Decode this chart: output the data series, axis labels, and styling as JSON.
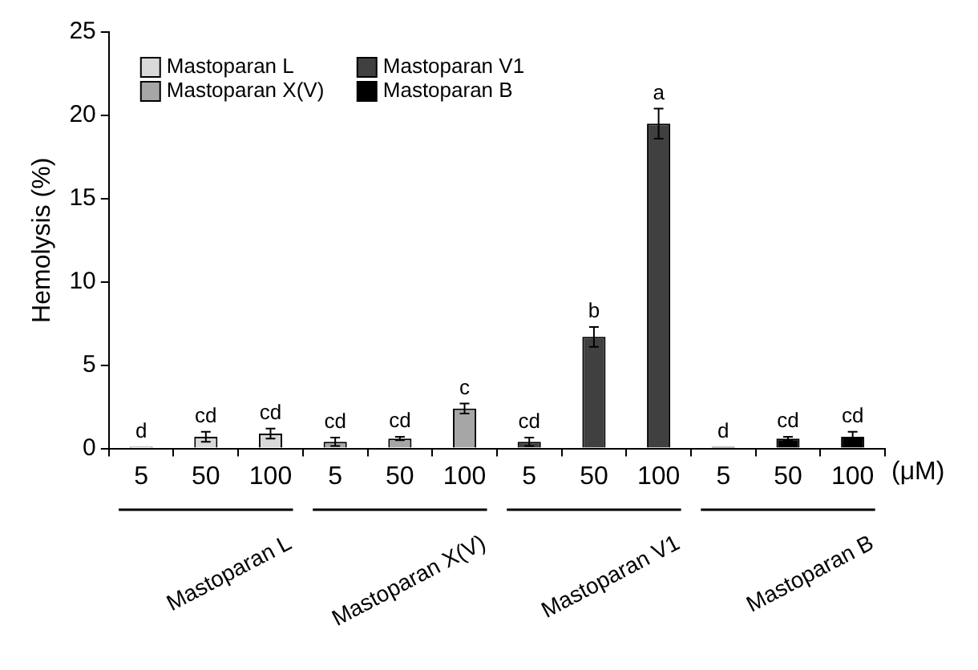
{
  "chart_data": {
    "type": "bar",
    "ylabel": "Hemolysis (%)",
    "xlabel": "(μM)",
    "categories": [
      "5",
      "50",
      "100",
      "5",
      "50",
      "100",
      "5",
      "50",
      "100",
      "5",
      "50",
      "100"
    ],
    "series": [
      {
        "name": "Mastoparan L",
        "color": "#d9d9d9",
        "values": [
          0.1,
          0.7,
          0.9,
          null,
          null,
          null,
          null,
          null,
          null,
          null,
          null,
          null
        ],
        "errors": [
          null,
          0.3,
          0.3,
          null,
          null,
          null,
          null,
          null,
          null,
          null,
          null,
          null
        ],
        "value_labels": [
          "d",
          "cd",
          "cd",
          null,
          null,
          null,
          null,
          null,
          null,
          null,
          null,
          null
        ]
      },
      {
        "name": "Mastoparan X(V)",
        "color": "#a6a6a6",
        "values": [
          null,
          null,
          null,
          0.4,
          0.6,
          2.4,
          null,
          null,
          null,
          null,
          null,
          null
        ],
        "errors": [
          null,
          null,
          null,
          0.25,
          0.1,
          0.3,
          null,
          null,
          null,
          null,
          null,
          null
        ],
        "value_labels": [
          null,
          null,
          null,
          "cd",
          "cd",
          "c",
          null,
          null,
          null,
          null,
          null,
          null
        ]
      },
      {
        "name": "Mastoparan V1",
        "color": "#404040",
        "values": [
          null,
          null,
          null,
          null,
          null,
          null,
          0.4,
          6.7,
          19.5,
          null,
          null,
          null
        ],
        "errors": [
          null,
          null,
          null,
          null,
          null,
          null,
          0.25,
          0.6,
          0.9,
          null,
          null,
          null
        ],
        "value_labels": [
          null,
          null,
          null,
          null,
          null,
          null,
          "cd",
          "b",
          "a",
          null,
          null,
          null
        ]
      },
      {
        "name": "Mastoparan B",
        "color": "#000000",
        "values": [
          null,
          null,
          null,
          null,
          null,
          null,
          null,
          null,
          null,
          0.1,
          0.6,
          0.7
        ],
        "errors": [
          null,
          null,
          null,
          null,
          null,
          null,
          null,
          null,
          null,
          null,
          0.1,
          0.3
        ],
        "value_labels": [
          null,
          null,
          null,
          null,
          null,
          null,
          null,
          null,
          null,
          "d",
          "cd",
          "cd"
        ]
      }
    ],
    "ylim": [
      0,
      25
    ],
    "yticks": [
      0,
      5,
      10,
      15,
      20,
      25
    ],
    "grid": false,
    "legend": "top left"
  }
}
